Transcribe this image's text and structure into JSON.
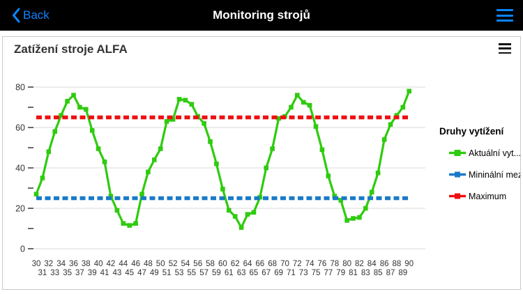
{
  "nav": {
    "back_label": "Back",
    "title": "Monitoring strojů"
  },
  "chart": {
    "title": "Zatížení stroje ALFA"
  },
  "colors": {
    "nav_accent": "#0a84ff",
    "series_green": "#2ecb0e",
    "series_blue": "#1a7ac8",
    "series_red": "#ee1010",
    "gridline": "#d8d8d8",
    "axis_text": "#333333"
  },
  "chart_data": {
    "type": "line",
    "title": "Zatížení stroje ALFA",
    "legend_title": "Druhy vytížení",
    "legend_position": "right",
    "grid": true,
    "xlabel": "",
    "ylabel": "",
    "ylim": [
      0,
      85
    ],
    "yticks": [
      0,
      20,
      40,
      60,
      80
    ],
    "ytick_minor_step": 10,
    "x": [
      30,
      31,
      32,
      33,
      34,
      35,
      36,
      37,
      38,
      39,
      40,
      41,
      42,
      43,
      44,
      45,
      46,
      47,
      48,
      49,
      50,
      51,
      52,
      53,
      54,
      55,
      56,
      57,
      58,
      59,
      60,
      61,
      62,
      63,
      64,
      65,
      66,
      67,
      68,
      69,
      70,
      71,
      72,
      73,
      74,
      75,
      76,
      77,
      78,
      79,
      80,
      81,
      82,
      83,
      84,
      85,
      86,
      87,
      88,
      89,
      90
    ],
    "series": [
      {
        "name": "Aktuální vyt...",
        "color": "#2ecb0e",
        "type": "line-markers",
        "values": [
          27,
          35,
          48,
          58,
          66,
          73,
          76,
          70,
          69,
          58.5,
          49.5,
          43,
          26,
          19,
          12.5,
          11.5,
          12.5,
          27,
          38,
          44,
          49.5,
          63,
          64,
          74,
          73.5,
          71.5,
          65.5,
          62,
          53,
          42,
          29.5,
          19,
          16,
          10.5,
          17,
          18,
          25.5,
          40,
          49.5,
          64.5,
          65.5,
          70,
          76,
          72.5,
          71,
          60.5,
          49,
          36,
          26,
          24,
          14,
          15,
          15.5,
          20,
          28,
          37.5,
          54,
          61.5,
          66,
          70,
          78
        ]
      },
      {
        "name": "Mininální mez",
        "color": "#1a7ac8",
        "type": "dashed-constant",
        "value": 25
      },
      {
        "name": "Maximum",
        "color": "#ee1010",
        "type": "dashed-constant",
        "value": 65
      }
    ]
  }
}
